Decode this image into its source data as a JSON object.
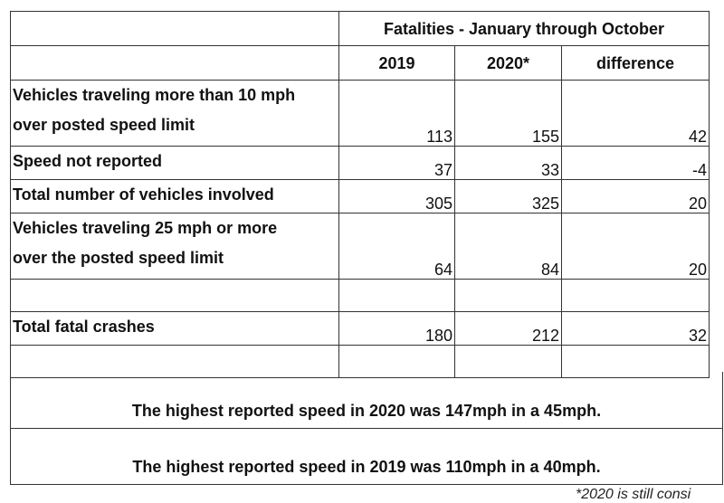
{
  "table": {
    "title": "Fatalities - January through October",
    "columns": [
      "2019",
      "2020*",
      "difference"
    ],
    "rows": [
      {
        "label_line1": "Vehicles traveling more than 10 mph",
        "label_line2": "over posted speed limit",
        "y2019": "113",
        "y2020": "155",
        "diff": "42"
      },
      {
        "label": "Speed not reported",
        "y2019": "37",
        "y2020": "33",
        "diff": "-4"
      },
      {
        "label": "Total number of vehicles involved",
        "y2019": "305",
        "y2020": "325",
        "diff": "20"
      },
      {
        "label_line1": "Vehicles traveling 25 mph or more",
        "label_line2": "over the posted speed limit",
        "y2019": "64",
        "y2020": "84",
        "diff": "20"
      },
      {
        "label": "Total fatal crashes",
        "y2019": "180",
        "y2020": "212",
        "diff": "32"
      }
    ]
  },
  "notes": [
    "The highest reported speed in 2020 was 147mph in a 45mph.",
    "The highest reported speed in 2019 was 110mph in a 40mph."
  ],
  "footnote": "*2020 is still consi"
}
